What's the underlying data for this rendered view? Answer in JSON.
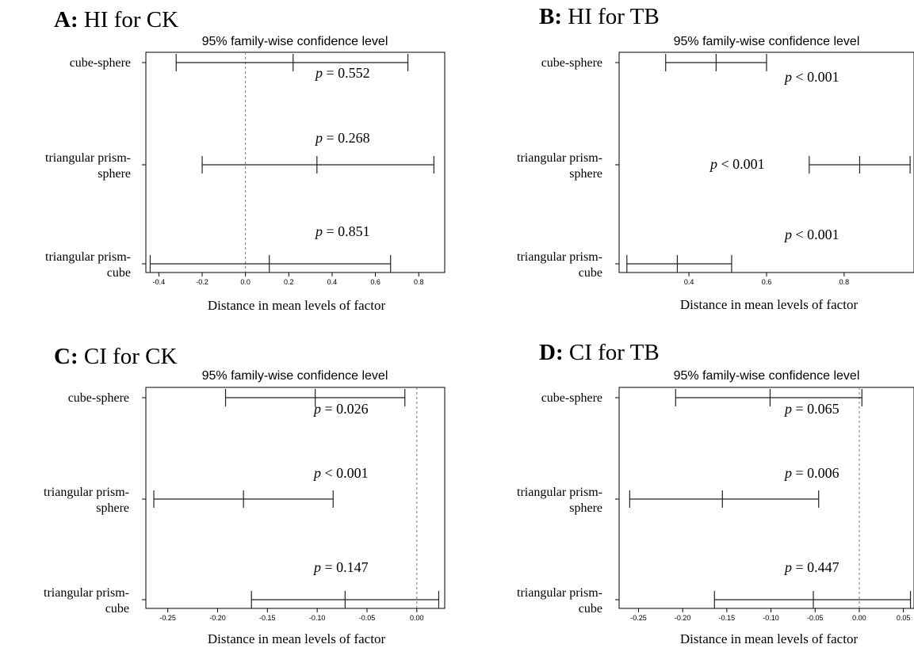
{
  "chart_data": [
    {
      "type": "errorbar",
      "panel_letter": "A:",
      "panel_title": "HI for CK",
      "title": "95% family-wise confidence level",
      "xlabel": "Distance in mean levels of factor",
      "xlim": [
        -0.46,
        0.92
      ],
      "xticks": [
        -0.4,
        -0.2,
        0.0,
        0.2,
        0.4,
        0.6,
        0.8
      ],
      "xtick_labels": [
        "-0.4",
        "-0.2",
        "0.0",
        "0.2",
        "0.4",
        "0.6",
        "0.8"
      ],
      "zero_line": true,
      "comparisons": [
        {
          "label_lines": [
            "cube-sphere"
          ],
          "lower": -0.32,
          "estimate": 0.22,
          "upper": 0.75,
          "p_text": " = 0.552"
        },
        {
          "label_lines": [
            "triangular prism-",
            "sphere"
          ],
          "lower": -0.2,
          "estimate": 0.33,
          "upper": 0.87,
          "p_text": " = 0.268"
        },
        {
          "label_lines": [
            "triangular prism-",
            "cube"
          ],
          "lower": -0.44,
          "estimate": 0.11,
          "upper": 0.67,
          "p_text": " = 0.851"
        }
      ]
    },
    {
      "type": "errorbar",
      "panel_letter": "B:",
      "panel_title": "HI for TB",
      "title": "95% family-wise confidence level",
      "xlabel": "Distance in mean levels of factor",
      "xlim": [
        0.22,
        0.98
      ],
      "xticks": [
        0.4,
        0.6,
        0.8
      ],
      "xtick_labels": [
        "0.4",
        "0.6",
        "0.8"
      ],
      "zero_line": false,
      "comparisons": [
        {
          "label_lines": [
            "cube-sphere"
          ],
          "lower": 0.34,
          "estimate": 0.47,
          "upper": 0.6,
          "p_text": " < 0.001"
        },
        {
          "label_lines": [
            "triangular prism-",
            "sphere"
          ],
          "lower": 0.71,
          "estimate": 0.84,
          "upper": 0.97,
          "p_text": " < 0.001"
        },
        {
          "label_lines": [
            "triangular prism-",
            "cube"
          ],
          "lower": 0.24,
          "estimate": 0.37,
          "upper": 0.51,
          "p_text": " < 0.001"
        }
      ]
    },
    {
      "type": "errorbar",
      "panel_letter": "C:",
      "panel_title": "CI for CK",
      "title": "95% family-wise confidence level",
      "xlabel": "Distance in mean levels of factor",
      "xlim": [
        -0.272,
        0.028
      ],
      "xticks": [
        -0.25,
        -0.2,
        -0.15,
        -0.1,
        -0.05,
        0.0
      ],
      "xtick_labels": [
        "-0.25",
        "-0.20",
        "-0.15",
        "-0.10",
        "-0.05",
        "0.00"
      ],
      "zero_line": true,
      "comparisons": [
        {
          "label_lines": [
            "cube-sphere"
          ],
          "lower": -0.192,
          "estimate": -0.102,
          "upper": -0.012,
          "p_text": " = 0.026"
        },
        {
          "label_lines": [
            "triangular prism-",
            "sphere"
          ],
          "lower": -0.264,
          "estimate": -0.174,
          "upper": -0.084,
          "p_text": " < 0.001"
        },
        {
          "label_lines": [
            "triangular prism-",
            "cube"
          ],
          "lower": -0.166,
          "estimate": -0.072,
          "upper": 0.022,
          "p_text": " = 0.147"
        }
      ]
    },
    {
      "type": "errorbar",
      "panel_letter": "D:",
      "panel_title": "CI for TB",
      "title": "95% family-wise confidence level",
      "xlabel": "Distance in mean levels of factor",
      "xlim": [
        -0.272,
        0.062
      ],
      "xticks": [
        -0.25,
        -0.2,
        -0.15,
        -0.1,
        -0.05,
        0.0,
        0.05
      ],
      "xtick_labels": [
        "-0.25",
        "-0.20",
        "-0.15",
        "-0.10",
        "-0.05",
        "0.00",
        "0.05"
      ],
      "zero_line": true,
      "comparisons": [
        {
          "label_lines": [
            "cube-sphere"
          ],
          "lower": -0.208,
          "estimate": -0.101,
          "upper": 0.003,
          "p_text": " = 0.065"
        },
        {
          "label_lines": [
            "triangular prism-",
            "sphere"
          ],
          "lower": -0.26,
          "estimate": -0.155,
          "upper": -0.046,
          "p_text": " = 0.006"
        },
        {
          "label_lines": [
            "triangular prism-",
            "cube"
          ],
          "lower": -0.164,
          "estimate": -0.052,
          "upper": 0.058,
          "p_text": " = 0.447"
        }
      ]
    }
  ]
}
